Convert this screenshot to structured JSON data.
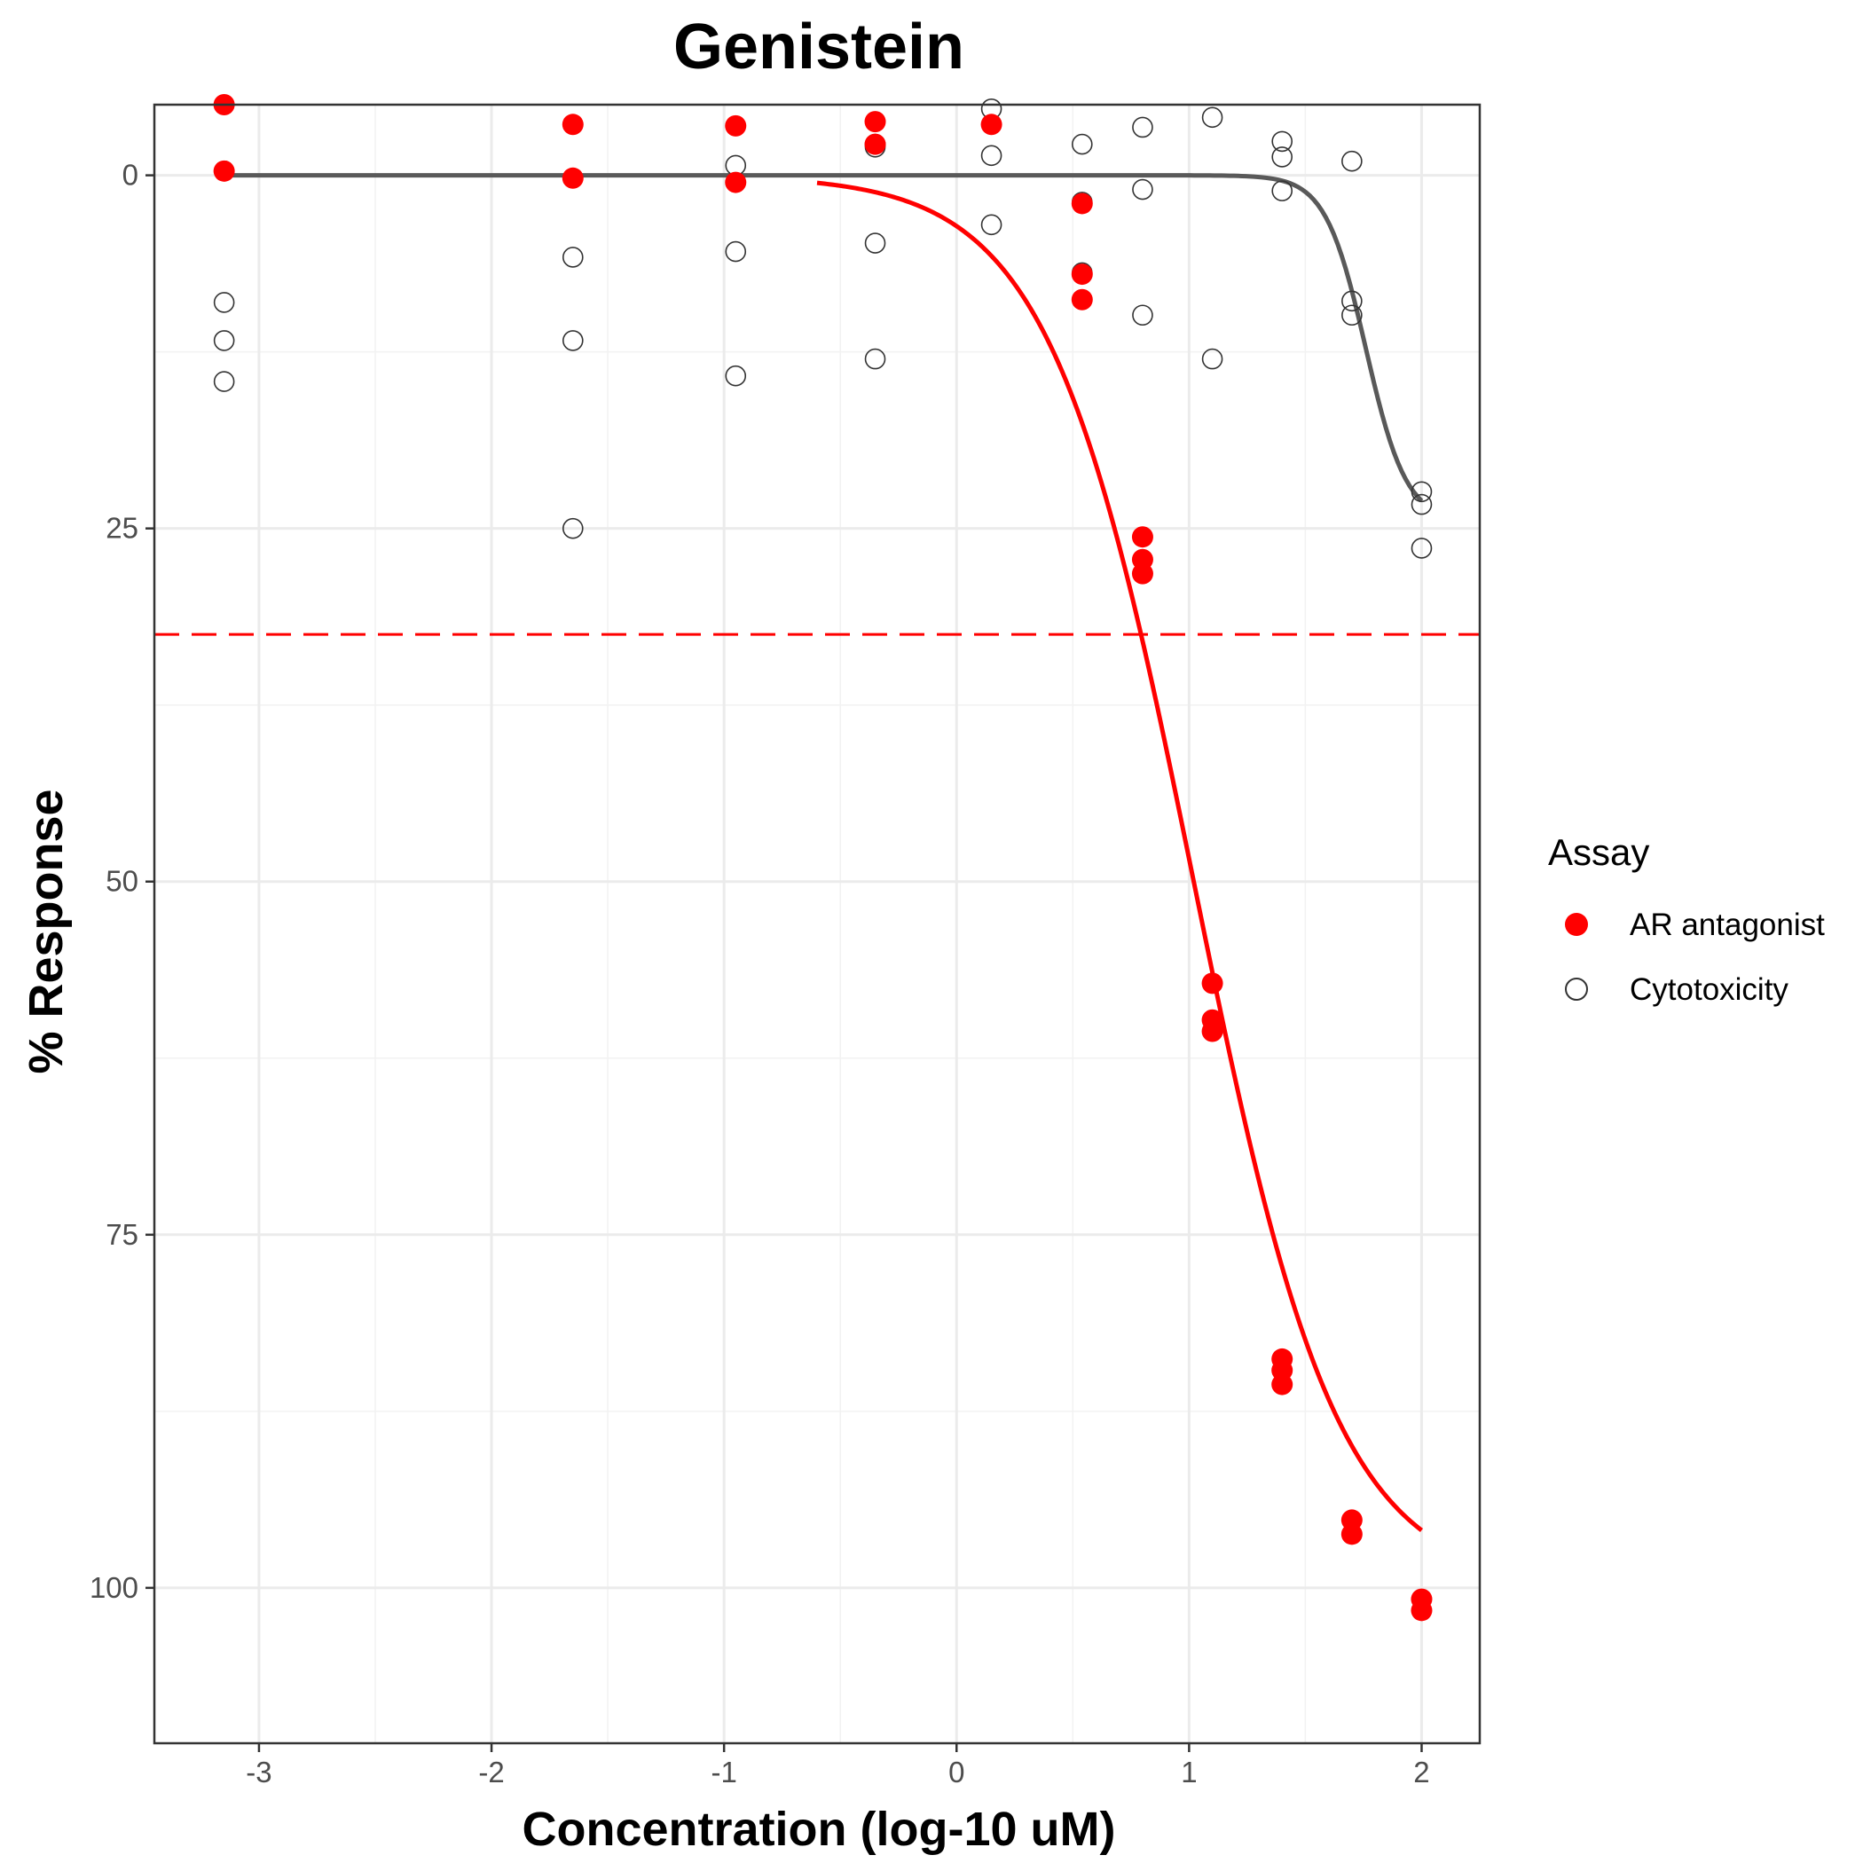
{
  "chart_data": {
    "type": "scatter",
    "title": "Genistein",
    "xlabel": "Concentration (log-10 uM)",
    "ylabel": "% Response",
    "xlim": [
      -3.45,
      2.25
    ],
    "ylim": [
      111,
      -5
    ],
    "y_reversed": true,
    "x_ticks": [
      -3,
      -2,
      -1,
      0,
      1,
      2
    ],
    "x_tick_labels": [
      "-3",
      "-2",
      "-1",
      "0",
      "1",
      "2"
    ],
    "y_ticks": [
      0,
      25,
      50,
      75,
      100
    ],
    "y_tick_labels": [
      "0",
      "25",
      "50",
      "75",
      "100"
    ],
    "grid": true,
    "legend": {
      "title": "Assay",
      "position": "right"
    },
    "threshold": {
      "y": 32.5,
      "color": "#ff0000",
      "style": "dashed"
    },
    "colors": {
      "ar_antagonist": "#ff0000",
      "cytotoxicity_fit": "#595959",
      "cytotoxicity_marker": "#333333"
    },
    "series": [
      {
        "name": "AR antagonist",
        "marker": "filled-circle",
        "color": "#ff0000",
        "points": [
          [
            -3.15,
            -5
          ],
          [
            -3.15,
            -0.3
          ],
          [
            -1.65,
            -3.6
          ],
          [
            -1.65,
            0.2
          ],
          [
            -0.95,
            -3.5
          ],
          [
            -0.95,
            0.5
          ],
          [
            -0.35,
            -3.8
          ],
          [
            -0.35,
            -2.2
          ],
          [
            0.15,
            -3.6
          ],
          [
            0.54,
            2.0
          ],
          [
            0.54,
            7.0
          ],
          [
            0.54,
            8.8
          ],
          [
            0.8,
            25.6
          ],
          [
            0.8,
            27.2
          ],
          [
            0.8,
            28.2
          ],
          [
            1.1,
            57.2
          ],
          [
            1.1,
            59.8
          ],
          [
            1.1,
            60.6
          ],
          [
            1.4,
            83.8
          ],
          [
            1.4,
            84.6
          ],
          [
            1.4,
            85.6
          ],
          [
            1.7,
            95.2
          ],
          [
            1.7,
            96.2
          ],
          [
            2.0,
            100.8
          ],
          [
            2.0,
            101.6
          ]
        ],
        "fit": {
          "model": "hill",
          "top": 0,
          "bottom": 100,
          "log_ac50": 1.02,
          "hill_slope": 1.4,
          "x_range": [
            -0.6,
            2.0
          ]
        }
      },
      {
        "name": "Cytotoxicity",
        "marker": "open-circle",
        "color": "#333333",
        "points": [
          [
            -3.15,
            9.0
          ],
          [
            -3.15,
            11.7
          ],
          [
            -3.15,
            14.6
          ],
          [
            -1.65,
            5.8
          ],
          [
            -1.65,
            11.7
          ],
          [
            -1.65,
            25.0
          ],
          [
            -0.95,
            -0.7
          ],
          [
            -0.95,
            5.4
          ],
          [
            -0.95,
            14.2
          ],
          [
            -0.35,
            -2.2
          ],
          [
            -0.35,
            -2.0
          ],
          [
            -0.35,
            4.8
          ],
          [
            -0.35,
            13.0
          ],
          [
            0.15,
            -4.7
          ],
          [
            0.15,
            -1.4
          ],
          [
            0.15,
            3.5
          ],
          [
            0.54,
            -2.2
          ],
          [
            0.54,
            1.9
          ],
          [
            0.54,
            6.9
          ],
          [
            0.8,
            -3.4
          ],
          [
            0.8,
            1.0
          ],
          [
            0.8,
            9.9
          ],
          [
            1.1,
            -4.1
          ],
          [
            1.1,
            13.0
          ],
          [
            1.4,
            -2.4
          ],
          [
            1.4,
            -1.3
          ],
          [
            1.4,
            1.1
          ],
          [
            1.7,
            -1.0
          ],
          [
            1.7,
            8.9
          ],
          [
            1.7,
            9.9
          ],
          [
            2.0,
            22.4
          ],
          [
            2.0,
            23.3
          ],
          [
            2.0,
            26.4
          ]
        ],
        "fit": {
          "model": "hill",
          "top": 0,
          "bottom": 24.5,
          "log_ac50": 1.76,
          "hill_slope": 5.0,
          "x_range": [
            -3.15,
            2.0
          ]
        }
      }
    ]
  }
}
